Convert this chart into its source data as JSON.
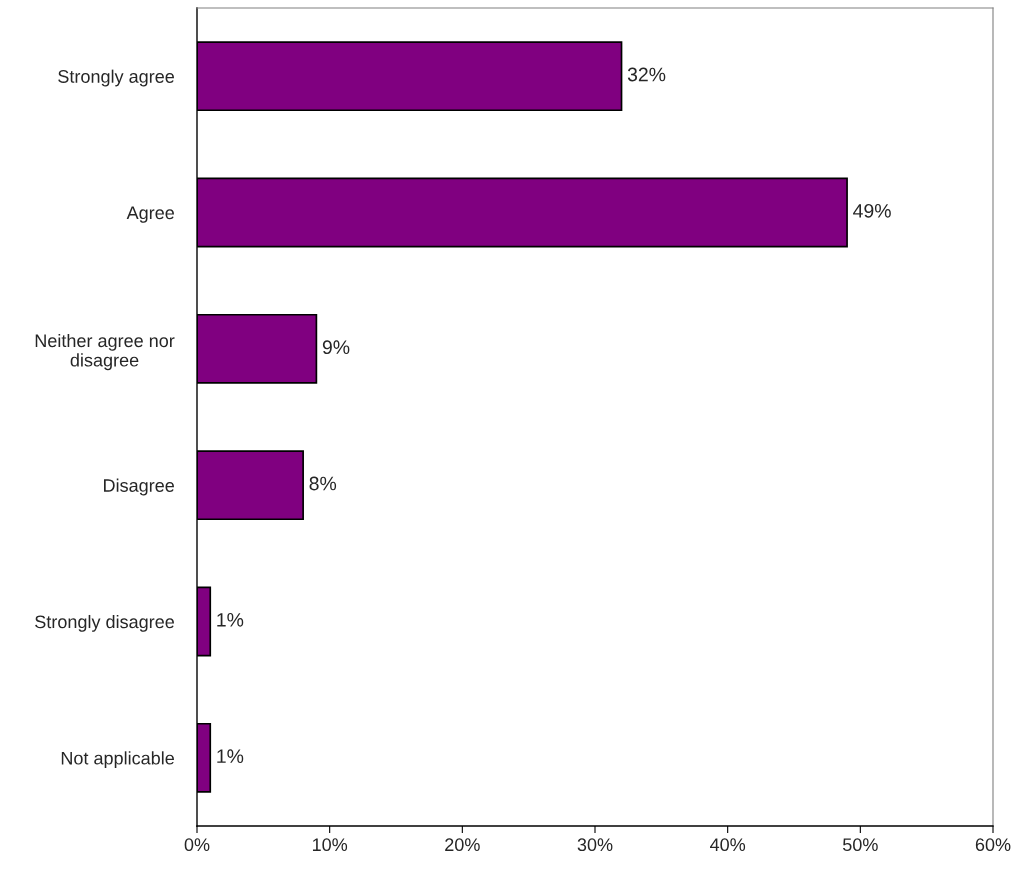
{
  "chart_data": {
    "type": "bar",
    "orientation": "horizontal",
    "categories": [
      "Strongly agree",
      "Agree",
      "Neither agree nor\ndisagree",
      "Disagree",
      "Strongly disagree",
      "Not applicable"
    ],
    "values": [
      32,
      49,
      9,
      8,
      1,
      1
    ],
    "value_labels": [
      "32%",
      "49%",
      "9%",
      "8%",
      "1%",
      "1%"
    ],
    "color": "#800080",
    "xlim": [
      0,
      60
    ],
    "xticks": [
      {
        "value": 0,
        "label": "0%"
      },
      {
        "value": 10,
        "label": "10%"
      },
      {
        "value": 20,
        "label": "20%"
      },
      {
        "value": 30,
        "label": "30%"
      },
      {
        "value": 40,
        "label": "40%"
      },
      {
        "value": 50,
        "label": "50%"
      },
      {
        "value": 60,
        "label": "60%"
      }
    ],
    "grid": false,
    "legend": false
  }
}
